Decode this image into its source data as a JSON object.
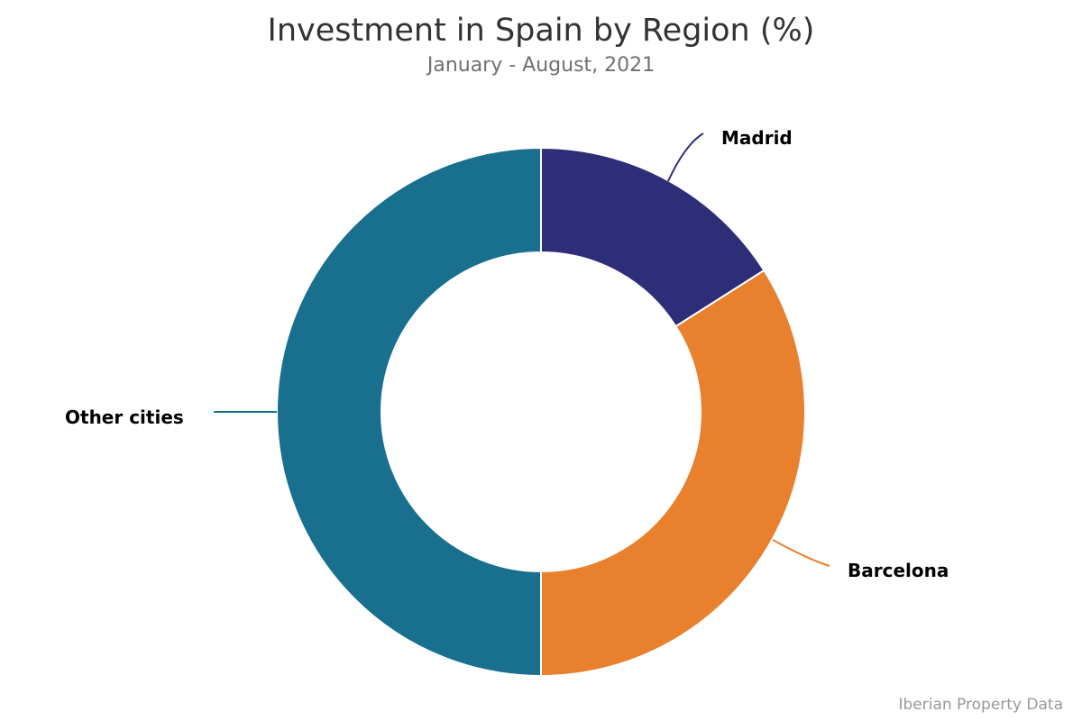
{
  "header": {
    "title": "Investment in Spain by Region (%)",
    "subtitle": "January - August, 2021"
  },
  "footer": {
    "source": "Iberian Property Data"
  },
  "labels": {
    "madrid": "Madrid",
    "barcelona": "Barcelona",
    "other": "Other cities"
  },
  "colors": {
    "madrid": "#2d2d78",
    "barcelona": "#e8802e",
    "other": "#186f8e"
  },
  "chart_data": {
    "type": "pie",
    "variant": "donut",
    "title": "Investment in Spain by Region (%)",
    "subtitle": "January - August, 2021",
    "categories": [
      "Madrid",
      "Barcelona",
      "Other cities"
    ],
    "values": [
      16,
      34,
      50
    ],
    "colors": [
      "#2d2d78",
      "#e8802e",
      "#186f8e"
    ],
    "start_angle": "12 o'clock, clockwise",
    "legend": "none (direct labels with leader lines)",
    "source": "Iberian Property Data"
  }
}
